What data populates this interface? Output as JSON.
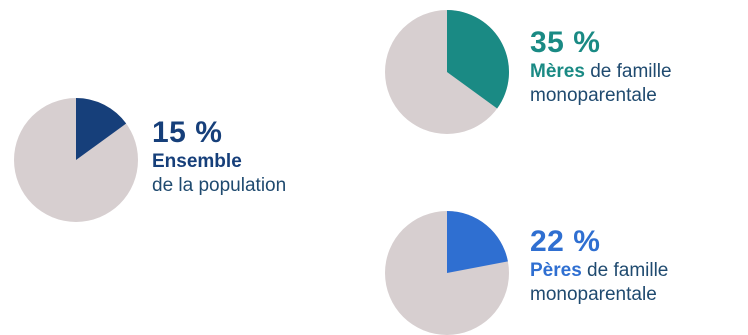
{
  "chart_data": {
    "type": "pie",
    "charts": [
      {
        "id": "ensemble",
        "value": 15,
        "percent_label": "15 %",
        "label_bold": "Ensemble",
        "label_rest": "",
        "label_line2": "de la population",
        "color": "#163f7a",
        "text_color": "#163f7a",
        "rest_color": "#d7cfd0"
      },
      {
        "id": "meres",
        "value": 35,
        "percent_label": "35 %",
        "label_bold": "Mères",
        "label_rest": " de famille",
        "label_line2": "monoparentale",
        "color": "#1a8a84",
        "text_color": "#1a8a84",
        "rest_color": "#d7cfd0"
      },
      {
        "id": "peres",
        "value": 22,
        "percent_label": "22 %",
        "label_bold": "Pères",
        "label_rest": " de famille",
        "label_line2": "monoparentale",
        "color": "#2f6fd1",
        "text_color": "#2f6fd1",
        "rest_color": "#d7cfd0"
      }
    ]
  }
}
